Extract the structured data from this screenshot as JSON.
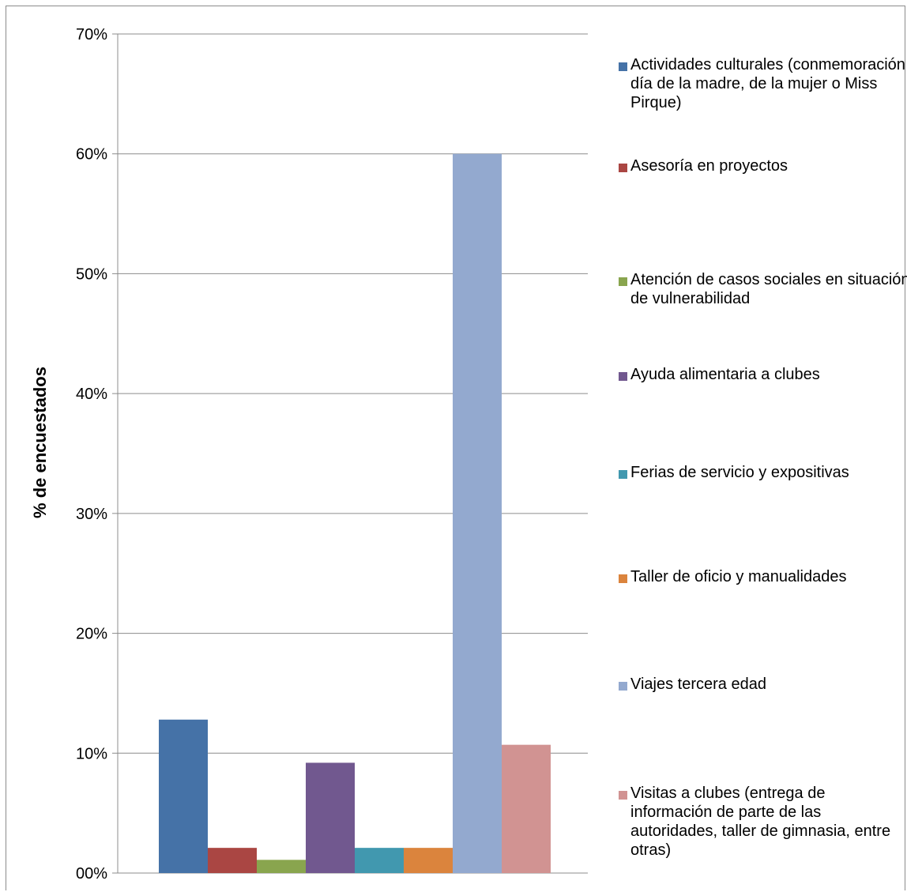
{
  "chart_data": {
    "type": "bar",
    "title": "",
    "xlabel": "",
    "ylabel": "% de encuestados",
    "ylim": [
      0,
      70
    ],
    "yticks": [
      "00%",
      "10%",
      "20%",
      "30%",
      "40%",
      "50%",
      "60%",
      "70%"
    ],
    "grid": true,
    "legend_position": "right",
    "series": [
      {
        "name": "Actividades culturales (conmemoración día de la madre, de la mujer o Miss Pirque)",
        "value": 12.8,
        "color": "#4572a7"
      },
      {
        "name": "Asesoría en proyectos",
        "value": 2.1,
        "color": "#aa4643"
      },
      {
        "name": "Atención de casos sociales en situación de vulnerabilidad",
        "value": 1.1,
        "color": "#89a54e"
      },
      {
        "name": "Ayuda alimentaria a clubes",
        "value": 9.2,
        "color": "#71588f"
      },
      {
        "name": "Ferias de servicio y expositivas",
        "value": 2.1,
        "color": "#4198af"
      },
      {
        "name": "Taller de oficio y manualidades",
        "value": 2.1,
        "color": "#db843d"
      },
      {
        "name": "Viajes tercera edad",
        "value": 60.0,
        "color": "#93a9cf"
      },
      {
        "name": "Visitas a clubes (entrega de información de parte de las autoridades, taller de gimnasia, entre otras)",
        "value": 10.7,
        "color": "#d19392"
      }
    ]
  }
}
